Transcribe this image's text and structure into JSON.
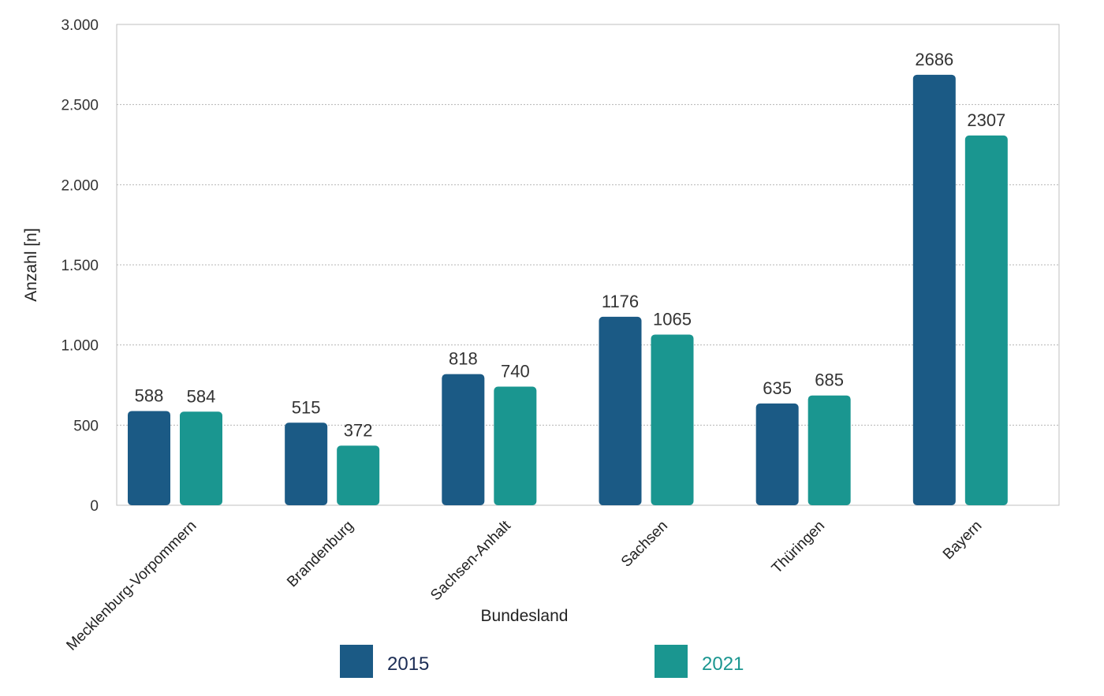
{
  "chart_data": {
    "type": "bar",
    "xlabel": "Bundesland",
    "ylabel": "Anzahl [n]",
    "ylim": [
      0,
      3000
    ],
    "yticks": [
      0,
      500,
      1000,
      1500,
      2000,
      2500,
      3000
    ],
    "ytick_labels": [
      "0",
      "500",
      "1.000",
      "1.500",
      "2.000",
      "2.500",
      "3.000"
    ],
    "grid": "horizontal-dotted",
    "legend_position": "bottom",
    "categories": [
      "Mecklenburg-Vorpommern",
      "Brandenburg",
      "Sachsen-Anhalt",
      "Sachsen",
      "Thüringen",
      "Bayern"
    ],
    "series": [
      {
        "name": "2015",
        "color": "#1b5a85",
        "values": [
          588,
          515,
          818,
          1176,
          635,
          2686
        ]
      },
      {
        "name": "2021",
        "color": "#1a9690",
        "values": [
          584,
          372,
          740,
          1065,
          685,
          2307
        ]
      }
    ]
  }
}
